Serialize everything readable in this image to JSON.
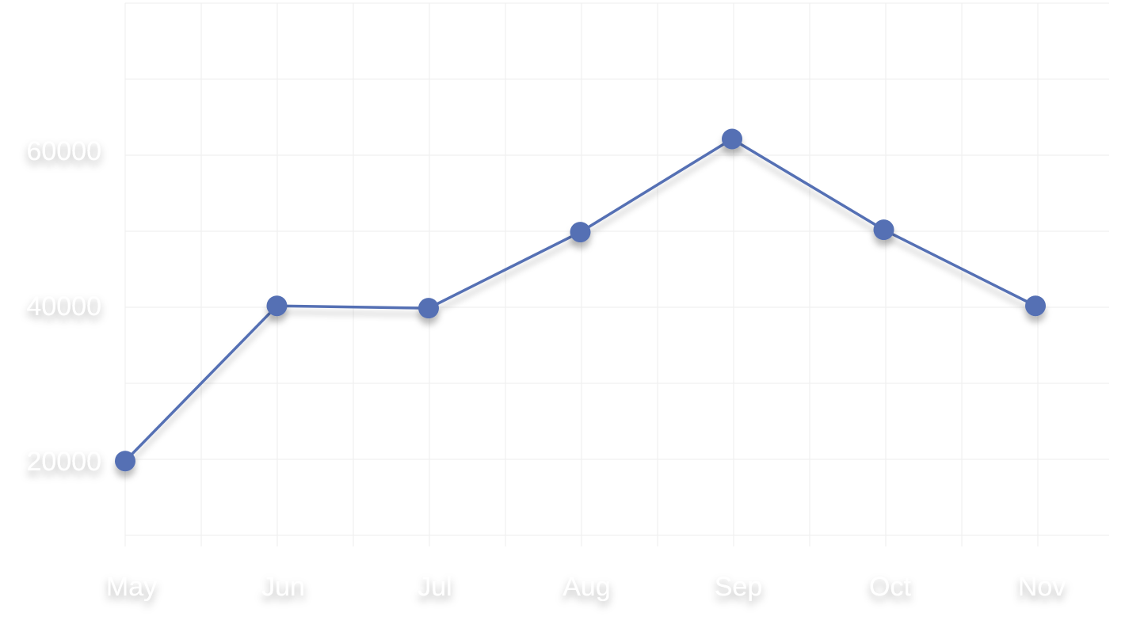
{
  "chart_data": {
    "type": "line",
    "title": "",
    "xlabel": "",
    "ylabel": "",
    "categories": [
      "May",
      "Jun",
      "Jul",
      "Aug",
      "Sep",
      "Oct",
      "Nov"
    ],
    "series": [
      {
        "values": [
          20000,
          40000,
          39700,
          49500,
          61500,
          49800,
          40000
        ],
        "color": "#5470b4"
      }
    ],
    "y_ticks": [
      20000,
      40000,
      60000
    ],
    "ylim": [
      9000,
      79000
    ],
    "grid": true,
    "legend": "none"
  }
}
